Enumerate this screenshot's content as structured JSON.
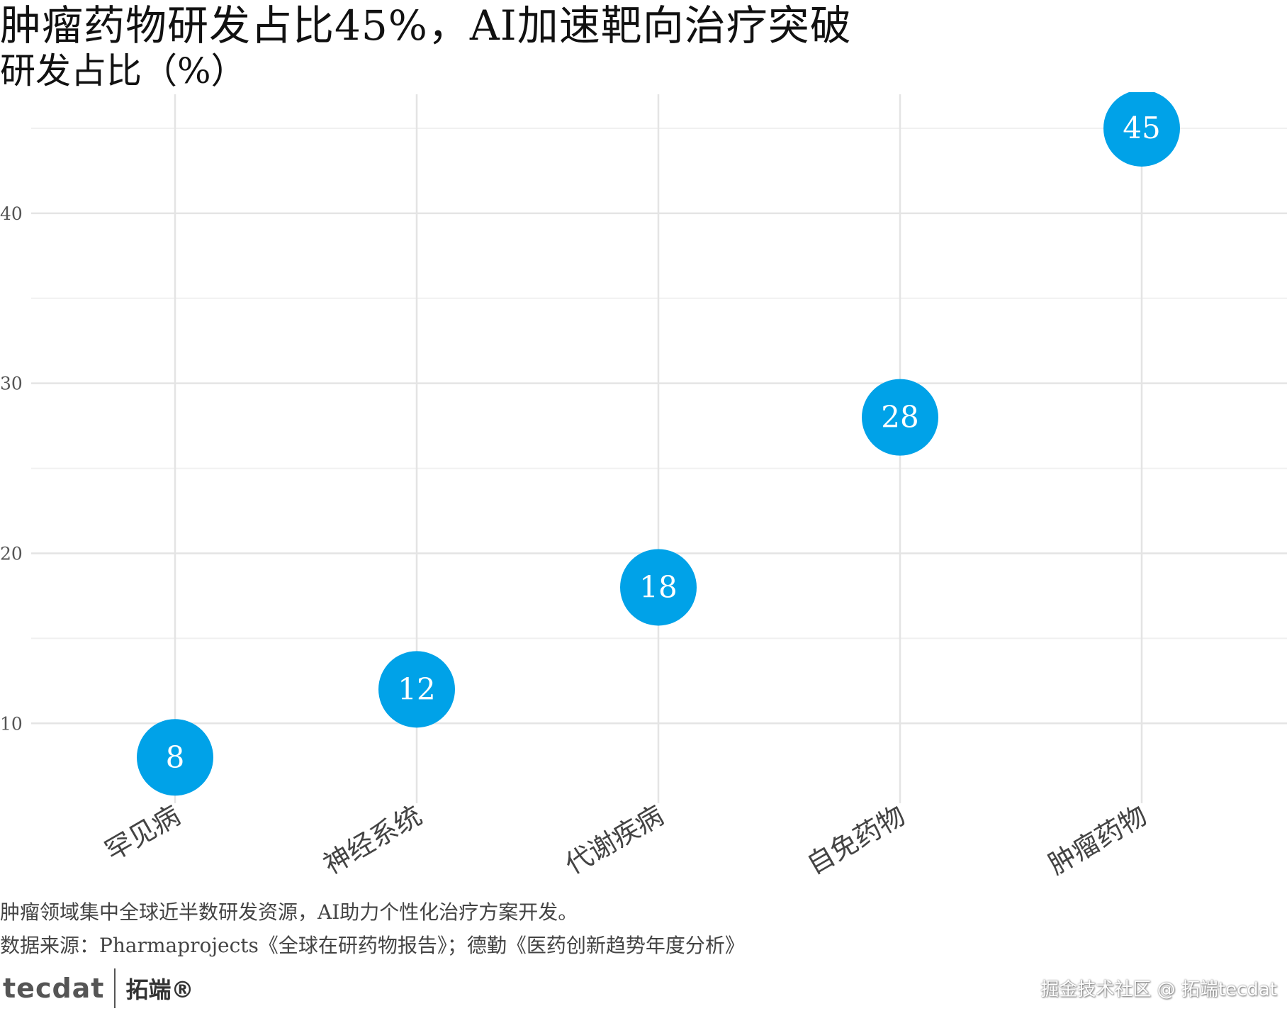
{
  "chart_data": {
    "type": "scatter",
    "title": "肿瘤药物研发占比45%，AI加速靶向治疗突破",
    "ylabel": "研发占比（%）",
    "xlabel": "",
    "categories": [
      "罕见病",
      "神经系统",
      "代谢疾病",
      "自免药物",
      "肿瘤药物"
    ],
    "values": [
      8,
      12,
      18,
      28,
      45
    ],
    "data_labels": [
      "8",
      "12",
      "18",
      "28",
      "45"
    ],
    "yticks": [
      10,
      20,
      30,
      40
    ],
    "ytick_labels": [
      "10",
      "20",
      "30",
      "40"
    ],
    "ylim": [
      5.3,
      47.0
    ],
    "grid": true,
    "legend": "none",
    "point_color": "#00A2E8"
  },
  "captions": {
    "note": "肿瘤领域集中全球近半数研发资源，AI助力个性化治疗方案开发。",
    "source": "数据来源：Pharmaprojects《全球在研药物报告》；德勤《医药创新趋势年度分析》"
  },
  "branding": {
    "logo_text": "tecdat",
    "logo_cn": "拓端®",
    "watermark": "掘金技术社区 @ 拓端tecdat"
  }
}
